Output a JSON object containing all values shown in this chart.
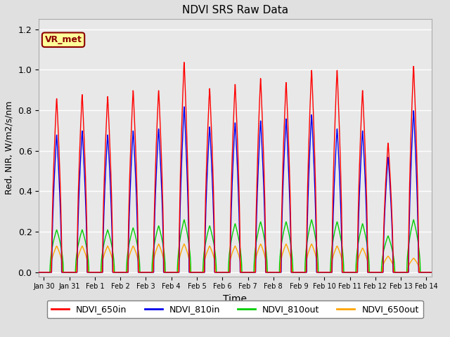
{
  "title": "NDVI SRS Raw Data",
  "xlabel": "Time",
  "ylabel": "Red, NIR, W/m2/s/nm",
  "ylim": [
    -0.02,
    1.25
  ],
  "xlim": [
    -0.2,
    15.2
  ],
  "fig_bg_color": "#e0e0e0",
  "plot_bg_color": "#e8e8e8",
  "annotation_text": "VR_met",
  "annotation_bg": "#ffff99",
  "annotation_edge": "#8B0000",
  "colors": {
    "NDVI_650in": "#FF0000",
    "NDVI_810in": "#0000EE",
    "NDVI_810out": "#00CC00",
    "NDVI_650out": "#FFA500"
  },
  "tick_labels": [
    "Jan 30",
    "Jan 31",
    "Feb 1",
    "Feb 2",
    "Feb 3",
    "Feb 4",
    "Feb 5",
    "Feb 6",
    "Feb 7",
    "Feb 8",
    "Feb 9",
    "Feb 10",
    "Feb 11",
    "Feb 12",
    "Feb 13",
    "Feb 14"
  ],
  "tick_positions": [
    0,
    1,
    2,
    3,
    4,
    5,
    6,
    7,
    8,
    9,
    10,
    11,
    12,
    13,
    14,
    15
  ],
  "day_peaks_650in": [
    0.86,
    0.88,
    0.87,
    0.9,
    0.9,
    1.04,
    0.91,
    0.93,
    0.96,
    0.94,
    1.0,
    1.0,
    0.9,
    0.64,
    1.02
  ],
  "day_peaks_810in": [
    0.68,
    0.7,
    0.68,
    0.7,
    0.71,
    0.82,
    0.72,
    0.74,
    0.75,
    0.76,
    0.78,
    0.71,
    0.7,
    0.57,
    0.8
  ],
  "day_peaks_810out": [
    0.21,
    0.21,
    0.21,
    0.22,
    0.23,
    0.26,
    0.23,
    0.24,
    0.25,
    0.25,
    0.26,
    0.25,
    0.24,
    0.18,
    0.26
  ],
  "day_peaks_650out": [
    0.13,
    0.13,
    0.13,
    0.13,
    0.14,
    0.14,
    0.13,
    0.13,
    0.14,
    0.14,
    0.14,
    0.13,
    0.12,
    0.08,
    0.07
  ]
}
